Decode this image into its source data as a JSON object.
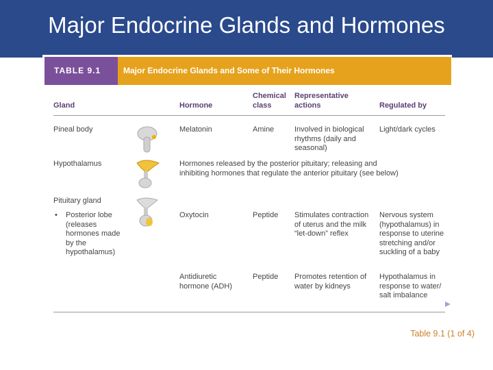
{
  "header": {
    "title": "Major Endocrine Glands and Hormones"
  },
  "table": {
    "label": "TABLE 9.1",
    "title": "Major Endocrine Glands and Some of Their Hormones",
    "columns": [
      "Gland",
      "Hormone",
      "Chemical class",
      "Representative actions",
      "Regulated by"
    ],
    "rows": [
      {
        "gland": "Pineal body",
        "hormone": "Melatonin",
        "class": "Amine",
        "actions": "Involved in biological rhythms (daily and seasonal)",
        "regulated": "Light/dark cycles"
      },
      {
        "gland": "Hypothalamus",
        "description": "Hormones released by the posterior pituitary; releasing and inhibiting hormones that regulate the anterior pituitary (see below)"
      },
      {
        "gland": "Pituitary gland"
      },
      {
        "gland": "Posterior lobe (releases hormones made by the hypothalamus)",
        "hormone": "Oxytocin",
        "class": "Peptide",
        "actions": "Stimulates contraction of uterus and the milk “let-down” reflex",
        "regulated": "Nervous system (hypothalamus) in response to uterine stretching and/or suckling of a baby"
      },
      {
        "hormone": "Antidiuretic hormone (ADH)",
        "class": "Peptide",
        "actions": "Promotes retention of water by kidneys",
        "regulated": "Hypothalamus in response to water/ salt imbalance"
      }
    ]
  },
  "footer": {
    "caption": "Table 9.1 (1 of 4)"
  }
}
